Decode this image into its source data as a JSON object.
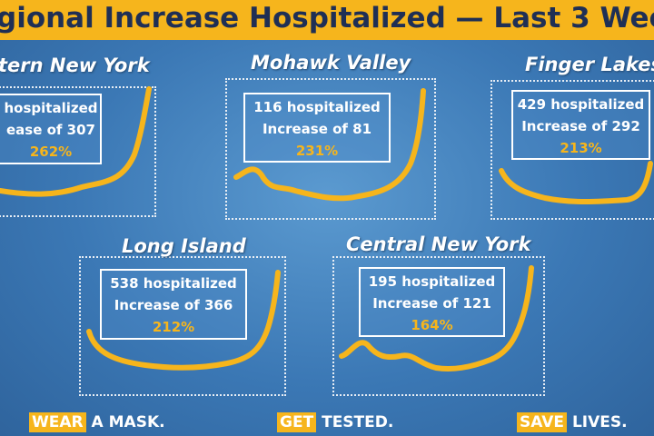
{
  "header": {
    "title": "gional Increase Hospitalized — Last 3 Wee"
  },
  "panels": [
    {
      "title": "tern New York",
      "line1": "hospitalized",
      "line2": "ease of 307",
      "percent": "262%"
    },
    {
      "title": "Mohawk Valley",
      "line1": "116 hospitalized",
      "line2": "Increase of 81",
      "percent": "231%"
    },
    {
      "title": "Finger Lakes",
      "line1": "429 hospitalized",
      "line2": "Increase of 292",
      "percent": "213%"
    },
    {
      "title": "Long Island",
      "line1": "538 hospitalized",
      "line2": "Increase of 366",
      "percent": "212%"
    },
    {
      "title": "Central New York",
      "line1": "195 hospitalized",
      "line2": "Increase of 121",
      "percent": "164%"
    }
  ],
  "footer": [
    {
      "highlight": "WEAR",
      "text": "A MASK."
    },
    {
      "highlight": "GET",
      "text": "TESTED."
    },
    {
      "highlight": "SAVE",
      "text": "LIVES."
    }
  ]
}
